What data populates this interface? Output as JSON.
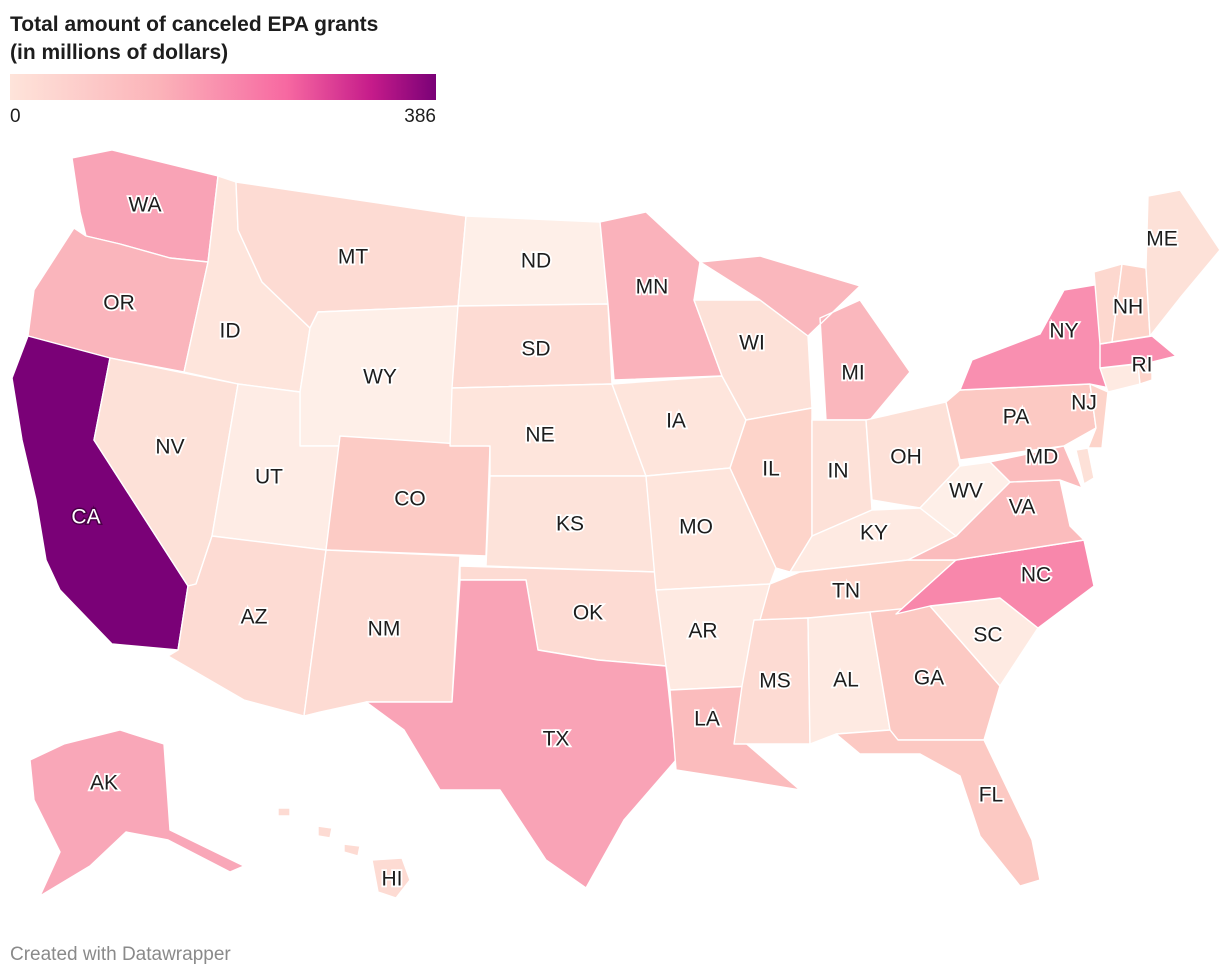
{
  "title": {
    "line1": "Total amount of canceled EPA grants",
    "line2": "(in millions of dollars)"
  },
  "legend": {
    "min": "0",
    "max": "386",
    "colors": [
      "#fee4da",
      "#fbb3b9",
      "#f768a1",
      "#c51b8a",
      "#7a0177"
    ]
  },
  "map_labels": {
    "WA": "WA",
    "OR": "OR",
    "CA": "CA",
    "ID": "ID",
    "NV": "NV",
    "MT": "MT",
    "WY": "WY",
    "UT": "UT",
    "AZ": "AZ",
    "CO": "CO",
    "NM": "NM",
    "ND": "ND",
    "SD": "SD",
    "NE": "NE",
    "KS": "KS",
    "OK": "OK",
    "TX": "TX",
    "MN": "MN",
    "IA": "IA",
    "MO": "MO",
    "AR": "AR",
    "LA": "LA",
    "WI": "WI",
    "IL": "IL",
    "MS": "MS",
    "AL": "AL",
    "MI": "MI",
    "IN": "IN",
    "OH": "OH",
    "KY": "KY",
    "TN": "TN",
    "GA": "GA",
    "FL": "FL",
    "SC": "SC",
    "NC": "NC",
    "VA": "VA",
    "WV": "WV",
    "PA": "PA",
    "NY": "NY",
    "MD": "MD",
    "NJ": "NJ",
    "RI": "RI",
    "NH": "NH",
    "ME": "ME",
    "AK": "AK",
    "HI": "HI"
  },
  "state_colors": {
    "CA": "#7a0177",
    "NC": "#f887ab",
    "NY": "#f98fb0",
    "MA": "#f98fb0",
    "TX": "#f9a3b6",
    "WA": "#f9a3b6",
    "AK": "#f9a7b8",
    "MN": "#fab2bb",
    "OR": "#fab5bc",
    "MI": "#fab7bd",
    "LA": "#fbbcbd",
    "VA": "#fbbcbd",
    "MD": "#fbbcbd",
    "PA": "#fcc9c3",
    "GA": "#fcc9c3",
    "FL": "#fcc9c3",
    "CO": "#fccbc5",
    "IL": "#fdd4ca",
    "NJ": "#fdd4ca",
    "NH": "#fdd4ca",
    "TN": "#fdd4ca",
    "MT": "#fddbd3",
    "SD": "#fddbd3",
    "AZ": "#fddbd3",
    "NM": "#fddbd3",
    "OK": "#fddbd3",
    "MS": "#fddbd3",
    "NV": "#fde1d8",
    "WI": "#fde1d8",
    "IN": "#fde1d8",
    "OH": "#fde1d8",
    "ME": "#fde1d8",
    "KS": "#fde3da",
    "ID": "#fee5dc",
    "NE": "#fee5dc",
    "IA": "#fee5dc",
    "MO": "#fee5dc",
    "AR": "#feeae2",
    "AL": "#feeae2",
    "KY": "#feeae2",
    "SC": "#feeae2",
    "UT": "#feece5",
    "WY": "#feefe8",
    "ND": "#feefe8",
    "WV": "#feefe8",
    "VT": "#fdd8cf",
    "CT": "#feeae2",
    "RI": "#fdd4ca",
    "DE": "#fde1d8",
    "HI": "#fddbd3"
  },
  "credit": "Created with Datawrapper"
}
